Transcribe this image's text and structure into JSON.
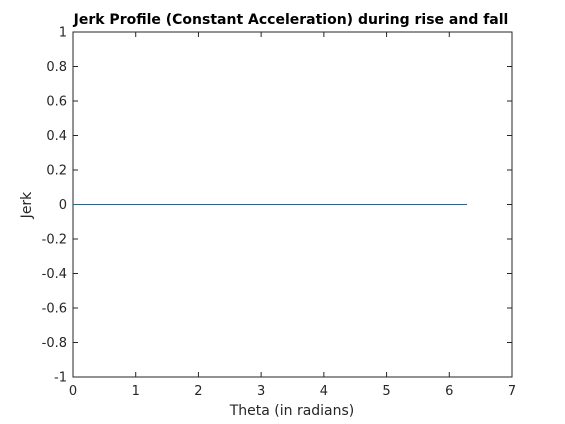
{
  "chart_data": {
    "type": "line",
    "title": "Jerk Profile (Constant Acceleration) during rise and fall",
    "xlabel": "Theta (in radians)",
    "ylabel": "Jerk",
    "xlim": [
      0,
      7
    ],
    "ylim": [
      -1,
      1
    ],
    "xticks": [
      0,
      1,
      2,
      3,
      4,
      5,
      6,
      7
    ],
    "xtick_labels": [
      "0",
      "1",
      "2",
      "3",
      "4",
      "5",
      "6",
      "7"
    ],
    "yticks": [
      -1,
      -0.8,
      -0.6,
      -0.4,
      -0.2,
      0,
      0.2,
      0.4,
      0.6,
      0.8,
      1
    ],
    "ytick_labels": [
      "-1",
      "-0.8",
      "-0.6",
      "-0.4",
      "-0.2",
      "0",
      "0.2",
      "0.4",
      "0.6",
      "0.8",
      "1"
    ],
    "grid": false,
    "series": [
      {
        "color": "#0072bd",
        "x": [
          0,
          6.283
        ],
        "y": [
          0,
          0
        ]
      }
    ]
  }
}
